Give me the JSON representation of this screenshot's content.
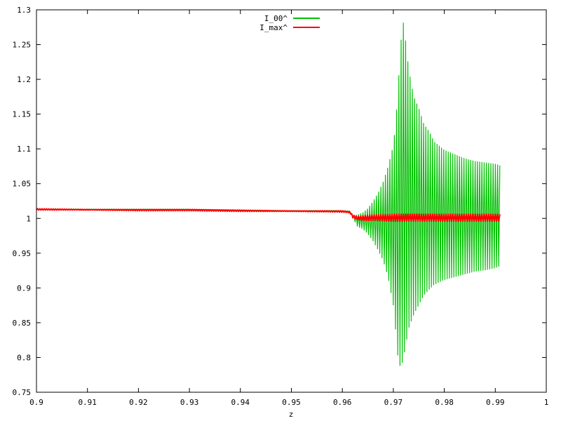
{
  "chart_data": {
    "type": "line",
    "title": "",
    "xlabel": "z",
    "ylabel": "",
    "xlim": [
      0.9,
      1.0
    ],
    "ylim": [
      0.75,
      1.3
    ],
    "x_ticks": [
      0.9,
      0.91,
      0.92,
      0.93,
      0.94,
      0.95,
      0.96,
      0.97,
      0.98,
      0.99,
      1.0
    ],
    "x_tick_labels": [
      "0.9",
      "0.91",
      "0.92",
      "0.93",
      "0.94",
      "0.95",
      "0.96",
      "0.97",
      "0.98",
      "0.99",
      "1"
    ],
    "y_ticks": [
      0.75,
      0.8,
      0.85,
      0.9,
      0.95,
      1.0,
      1.05,
      1.1,
      1.15,
      1.2,
      1.25,
      1.3
    ],
    "y_tick_labels": [
      "0.75",
      "0.8",
      "0.85",
      "0.9",
      "0.95",
      "1",
      "1.05",
      "1.1",
      "1.15",
      "1.2",
      "1.25",
      "1.3"
    ],
    "grid": false,
    "legend_position": "top-center",
    "series": [
      {
        "name": "I_00^",
        "color": "#00c000",
        "style": "oscillating envelope",
        "x": [
          0.9,
          0.91,
          0.92,
          0.93,
          0.94,
          0.95,
          0.96,
          0.9615,
          0.962,
          0.963,
          0.964,
          0.965,
          0.966,
          0.967,
          0.968,
          0.969,
          0.97,
          0.9705,
          0.971,
          0.9715,
          0.972,
          0.973,
          0.974,
          0.975,
          0.976,
          0.977,
          0.978,
          0.98,
          0.982,
          0.984,
          0.986,
          0.988,
          0.99,
          0.991
        ],
        "upper": [
          1.013,
          1.013,
          1.013,
          1.013,
          1.012,
          1.011,
          1.011,
          1.01,
          1.004,
          1.005,
          1.008,
          1.014,
          1.024,
          1.036,
          1.052,
          1.075,
          1.105,
          1.14,
          1.195,
          1.255,
          1.283,
          1.215,
          1.175,
          1.158,
          1.135,
          1.125,
          1.11,
          1.098,
          1.092,
          1.086,
          1.082,
          1.08,
          1.078,
          1.076
        ],
        "lower": [
          1.013,
          1.013,
          1.013,
          1.013,
          1.012,
          1.011,
          1.011,
          1.01,
          1.002,
          0.988,
          0.985,
          0.978,
          0.968,
          0.955,
          0.94,
          0.915,
          0.875,
          0.835,
          0.792,
          0.786,
          0.8,
          0.842,
          0.862,
          0.876,
          0.89,
          0.898,
          0.905,
          0.912,
          0.916,
          0.92,
          0.924,
          0.926,
          0.929,
          0.932
        ]
      },
      {
        "name": "I_max^",
        "color": "#ff0000",
        "style": "line with small oscillations",
        "x": [
          0.9,
          0.91,
          0.92,
          0.93,
          0.94,
          0.95,
          0.96,
          0.9615,
          0.962,
          0.963,
          0.964,
          0.966,
          0.97,
          0.975,
          0.98,
          0.985,
          0.99,
          0.991
        ],
        "upper": [
          1.014,
          1.013,
          1.013,
          1.013,
          1.012,
          1.011,
          1.011,
          1.01,
          1.005,
          1.003,
          1.004,
          1.005,
          1.006,
          1.006,
          1.006,
          1.006,
          1.006,
          1.006
        ],
        "lower": [
          1.012,
          1.012,
          1.011,
          1.011,
          1.01,
          1.01,
          1.009,
          1.008,
          1.001,
          0.998,
          0.997,
          0.997,
          0.996,
          0.996,
          0.996,
          0.996,
          0.996,
          0.996
        ]
      }
    ]
  }
}
